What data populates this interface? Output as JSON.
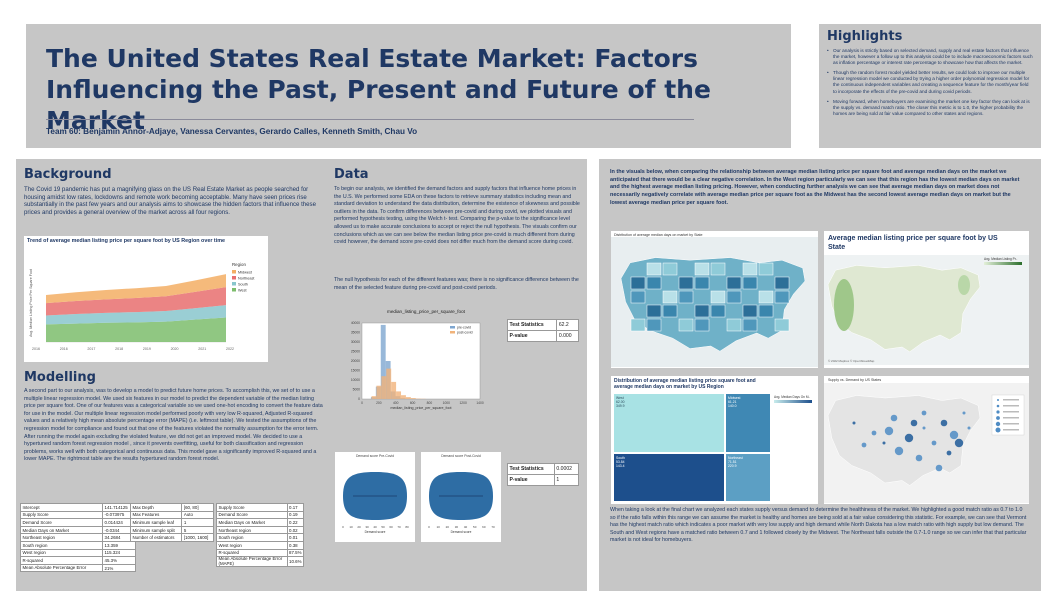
{
  "header": {
    "title": "The United States Real Estate Market: Factors Influencing the Past, Present and Future of the Market",
    "authors": "Team 60: Benjamin Annor-Adjaye, Vanessa Cervantes, Gerardo Calles, Kenneth Smith, Chau Vo"
  },
  "highlights": {
    "heading": "Highlights",
    "bullets": [
      "Our analysis is strictly based on selected demand, supply and real estate factors that influence the market, however a follow up to this analysis could be to include macroeconomic factors such as inflation percentage or interest rate percentage to showcase how that affects the market.",
      "Though the random forest model yielded better results, we could look to improve our multiple linear regression model we conducted by trying a higher order polynomial regression model for the continuous independent variables and creating a sequence feature for the month/year field to incorporate the effects of the pre-covid and during covid periods.",
      "Moving forward, when homebuyers are examining the market one key factor they can look at is the supply vs. demand match ratio. The closer this metric is to 1.0, the higher probability the homes are being sold at fair value compared to other states and regions."
    ]
  },
  "background": {
    "heading": "Background",
    "text": "The Covid 19 pandemic has put a magnifying glass on the US Real Estate Market as people searched for housing amidst low rates, lockdowns and remote work becoming acceptable. Many have seen prices rise substantially in the past few years and our analysis aims to  showcase the hidden factors that influence these prices and provides a general overview of the market across all four regions."
  },
  "modelling": {
    "heading": "Modelling",
    "text": "A second part to our analysis, was to develop a model to predict future home prices. To accomplish this, we set of to use a multiple linear regression model. We used six features in our model to predict the dependent variable of the median listing price per square foot. One of our features was a categorical variable so we used one-hot encoding to convert the feature data for use in the model. Our multiple linear regression model performed poorly with very low R-squared, Adjusted R-squared values and a relatively high mean absolute percentage error (MAPE) (i.e. leftmost table). We tested the assumptions of the regression model for compliance and found out that one of the features violated the normality assumption for the error term. After running the model again excluding the violated feature, we did not get an improved model. We decided to use a hypertuned random forest regression model , since it prevents overfitting, useful for both classification and regression problems, works well with both categorical and continuous data. This model gave a significantly improved R-squared and a lower MAPE. The rightmost table are the results hypertuned random forest model."
  },
  "data_section": {
    "heading": "Data",
    "text1": "To begin our analysis, we identified the demand factors and supply factors that influence home prices in the U.S. We performed some EDA on these factors to retrieve summary statistics including mean and standard deviation to understand the data distribution, determine the existence of skewness and possible outliers in the data. To confirm differences between pre-covid and during covid, we plotted visuals and performed hypothesis testing, using the Welch t- test. Comparing the p-value to the significance level allowed us to make accurate conclusions to accept or reject the null hypothesis. The visuals confirm our conclusions which as we can see below the median listing price pre-covid is much different from during covid however, the demand score pre-covid does not differ much from the demand score during covid.",
    "text2": "The null hypothesis for each of the different features was; there is no significance difference between the mean of the selected feature during pre-covid and post-covid periods."
  },
  "tests": [
    {
      "stat_label": "Test Statistics",
      "stat_value": "62.2",
      "p_label": "P-value",
      "p_value": "0.000"
    },
    {
      "stat_label": "Test Statistics",
      "stat_value": "0.0002",
      "p_label": "P-value",
      "p_value": "1"
    }
  ],
  "right_panel": {
    "intro": "In the visuals below, when comparing the relationship between average median listing price per square foot and average median days on the market we anticipated that there would be a clear negative correlation.  In the West region particularly we can see that this region has the lowest median days on market and the highest average median listing pricing. However, when conducting further analysis we can see that average median days on market does not necessarily negatively correlate with average median price per square foot as the Midwest has the second lowest average median days on market but the lowest average median price per square foot.",
    "outro": "When taking a look at the final chart we analyzed each states supply versus demand to determine the healthiness of the market. We highlighted a good match ratio as 0.7 to 1.0 so if the ratio falls within this range we can assume the market is healthy and homes are being sold at a fair value considering this statistic.  For example, we can see that Vermont has the highest match ratio which indicates a poor market with very low supply and high demand while North Dakota has a low match ratio with high supply but low demand. The South and West regions have a matched ratio between 0.7 and 1 followed closely by the Midwest. The Northeast falls outside the 0.7-1.0 range so we can infer that that particular market is not ideal for homebuyers.",
    "map1_title": "Distribution of average median days on market by State",
    "map2_title": "Average median listing price per square foot by US State",
    "map2_legend": "Avg. Median Listing Pr..",
    "treemap_title": "Distribution of average median listing price square foot and average median days on market by US Region",
    "treemap_legend": "Avg. Median Days On M..",
    "treemap_cells": [
      {
        "name": "West",
        "v1": "62.00",
        "v2": "349.9"
      },
      {
        "name": "South",
        "v1": "",
        "v2": ""
      },
      {
        "name": "Midwest",
        "v1": "61.21",
        "v2": "140.0"
      },
      {
        "name": "Northeast",
        "v1": "71.51",
        "v2": "220.9"
      },
      {
        "name": "South",
        "v1": "53.84",
        "v2": "143.4"
      }
    ],
    "supply_title": "Supply vs. Demand by US States",
    "copyright": "© 2022 Mapbox © OpenStreetMap"
  },
  "chart_data": [
    {
      "type": "area",
      "title": "Trend of average median listing price per square foot by US Region over time",
      "ylabel": "Avg. Median Listing Price Per Square Foot",
      "x": [
        "2016",
        "2017",
        "2018",
        "2019",
        "2020",
        "2021",
        "2022"
      ],
      "x_ticks_shown": [
        "2016",
        "2016",
        "2017",
        "2018",
        "2019",
        "2020",
        "2021",
        "2022"
      ],
      "legend_title": "Region",
      "series": [
        {
          "name": "West",
          "values": [
            215,
            225,
            235,
            240,
            250,
            275,
            300
          ],
          "color": "#7dbd6c"
        },
        {
          "name": "South",
          "values": [
            110,
            118,
            122,
            126,
            130,
            140,
            152
          ],
          "color": "#88c6cc"
        },
        {
          "name": "Northeast",
          "values": [
            150,
            158,
            165,
            172,
            180,
            200,
            220
          ],
          "color": "#e86f6f"
        },
        {
          "name": "Midwest",
          "values": [
            100,
            108,
            115,
            120,
            125,
            140,
            158
          ],
          "color": "#f3ae64"
        }
      ],
      "legend_position": "right"
    },
    {
      "type": "bar",
      "title": "median_listing_price_per_square_foot",
      "xlabel": "median_listing_price_per_square_foot",
      "y_ticks": [
        "0",
        "5000",
        "10000",
        "15000",
        "20000",
        "25000",
        "30000",
        "35000",
        "40000"
      ],
      "x_ticks": [
        "0",
        "200",
        "400",
        "600",
        "800",
        "1000",
        "1200",
        "1400"
      ],
      "series": [
        {
          "name": "pre-covid",
          "color": "#7ea6d0",
          "values": [
            0,
            1000,
            6500,
            39000,
            20000,
            4000,
            1500,
            500,
            200,
            100,
            50,
            0
          ]
        },
        {
          "name": "post-covid",
          "color": "#f1b37a",
          "values": [
            0,
            1500,
            7000,
            12000,
            16000,
            9000,
            4000,
            2000,
            1000,
            500,
            200,
            100
          ]
        }
      ]
    },
    {
      "type": "violin",
      "title": "Demand score Pre-Covid",
      "xlabel": "Demand score",
      "x_ticks": [
        "0",
        "10",
        "20",
        "30",
        "40",
        "50",
        "60",
        "70",
        "80"
      ],
      "color": "#2e6da4"
    },
    {
      "type": "violin",
      "title": "Demand score Post-Covid",
      "xlabel": "Demand score",
      "x_ticks": [
        "0",
        "10",
        "20",
        "30",
        "40",
        "50",
        "60",
        "70"
      ],
      "color": "#2e6da4"
    }
  ],
  "tables": {
    "linreg": [
      [
        "Intercept",
        "141.714125"
      ],
      [
        "Supply Score",
        "-0.073975"
      ],
      [
        "Demand Score",
        "0.014424"
      ],
      [
        "Median Days on Market",
        "-0.0344"
      ],
      [
        "Northeast region",
        "34.2684"
      ],
      [
        "South region",
        "13.359"
      ],
      [
        "West region",
        "115.324"
      ],
      [
        "R-squared",
        "45.3%"
      ],
      [
        "Mean Absolute Percentage Error",
        "21%"
      ]
    ],
    "rf_params": [
      [
        "Max Depth",
        "[60, 80]"
      ],
      [
        "Max Features",
        "Auto"
      ],
      [
        "Minimum sample leaf",
        "1"
      ],
      [
        "Minimum sample split",
        "5"
      ],
      [
        "Number of estimators",
        "[1000, 1600]"
      ]
    ],
    "rf_results": [
      [
        "Supply Score",
        "0.17"
      ],
      [
        "Demand Score",
        "0.19"
      ],
      [
        "Median Days on Market",
        "0.22"
      ],
      [
        "Northeast region",
        "0.02"
      ],
      [
        "South region",
        "0.01"
      ],
      [
        "West region",
        "0.38"
      ],
      [
        "R-squared",
        "87.5%"
      ],
      [
        "Mean Absolute Percentage Error (MAPE)",
        "10.6%"
      ]
    ]
  }
}
